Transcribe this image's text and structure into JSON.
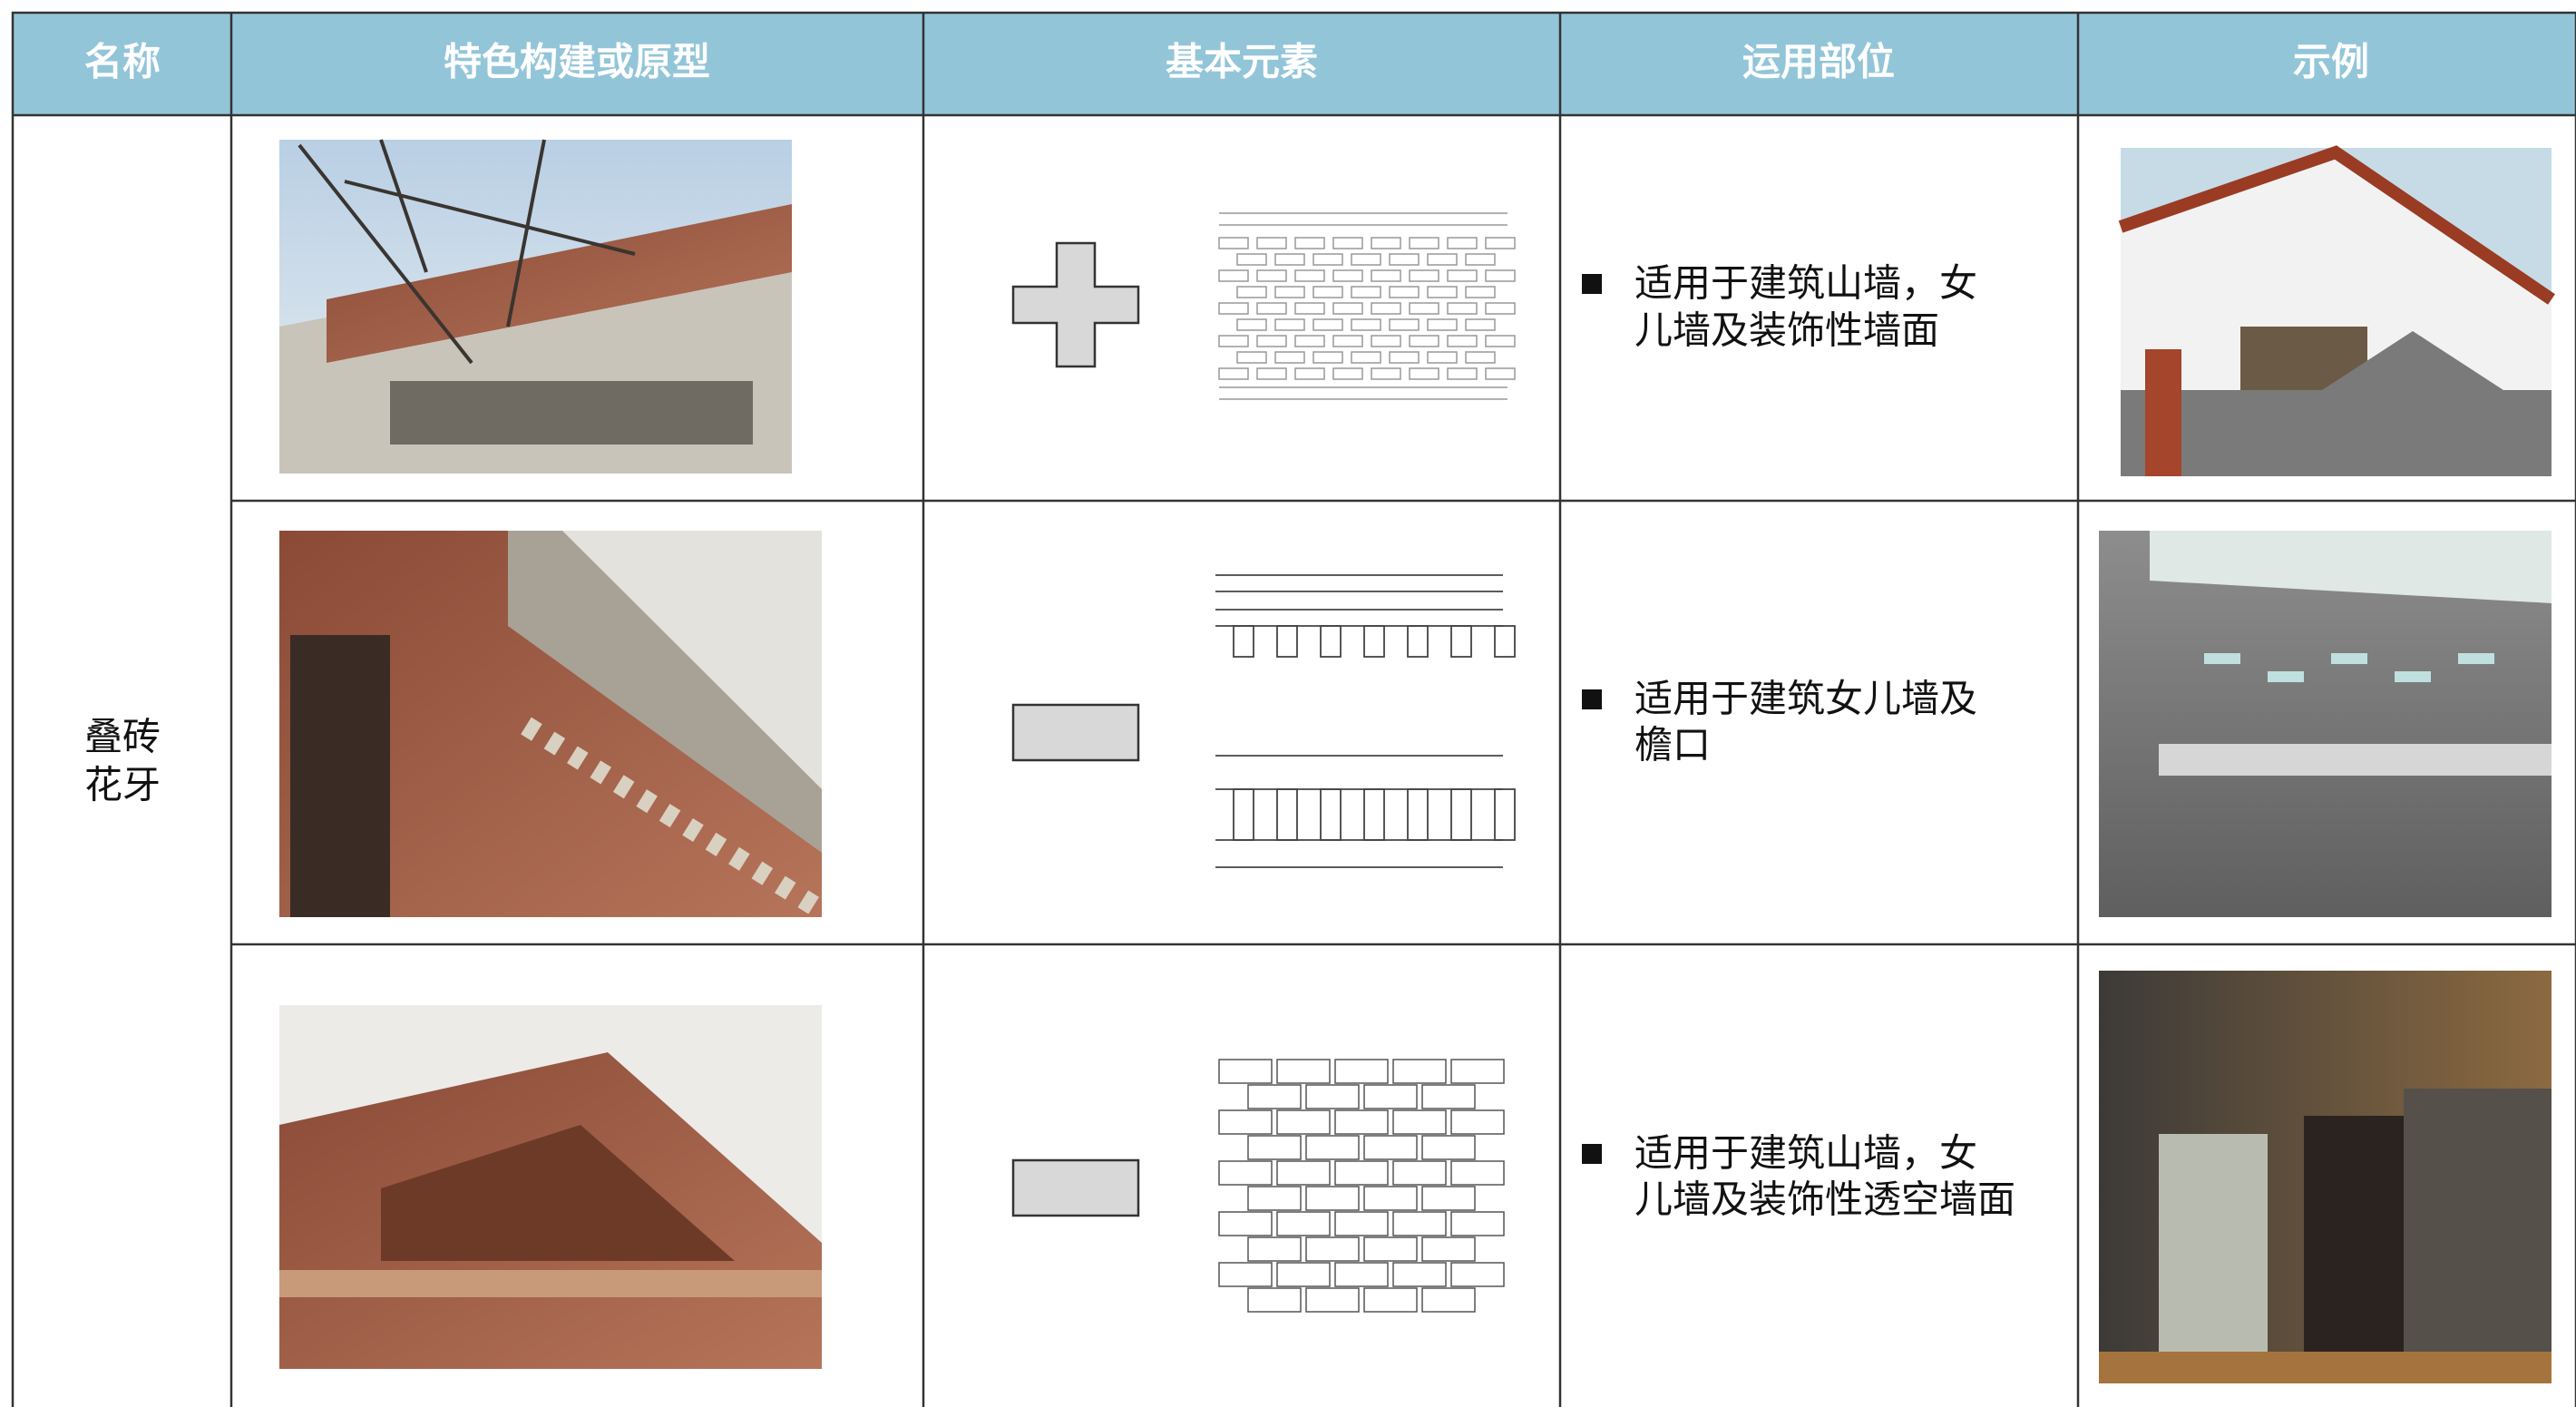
{
  "header": {
    "columns": [
      "名称",
      "特色构建或原型",
      "基本元素",
      "运用部位",
      "示例"
    ]
  },
  "name": {
    "lines": [
      "叠砖",
      "花牙"
    ]
  },
  "rows": [
    {
      "usage": {
        "lines": [
          "适用于建筑山墙，女",
          "儿墙及装饰性墙面"
        ]
      }
    },
    {
      "usage": {
        "lines": [
          "适用于建筑女儿墙及",
          "檐口"
        ]
      }
    },
    {
      "usage": {
        "lines": [
          "适用于建筑山墙，女",
          "儿墙及装饰性透空墙面"
        ]
      }
    }
  ]
}
